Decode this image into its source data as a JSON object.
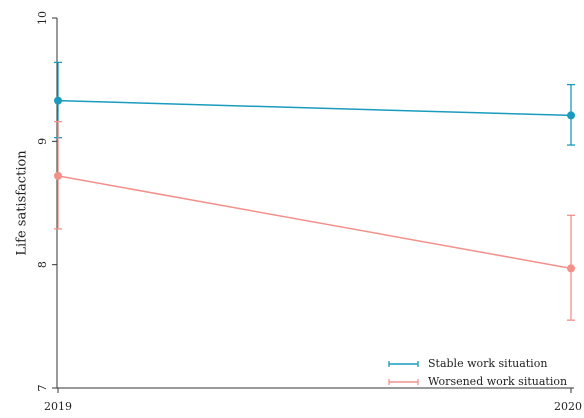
{
  "chart_data": {
    "type": "line",
    "x": [
      "2019",
      "2020"
    ],
    "ylabel": "Life satisfaction",
    "xlabel": "",
    "ylim": [
      7,
      10
    ],
    "yticks": [
      "7",
      "8",
      "9",
      "10"
    ],
    "grid": false,
    "legend_position": "bottom-right",
    "series": [
      {
        "name": "Stable work situation",
        "color": "#1a9bbd",
        "values": [
          9.33,
          9.21
        ],
        "ci_low": [
          9.03,
          8.97
        ],
        "ci_high": [
          9.64,
          9.46
        ]
      },
      {
        "name": "Worsened work situation",
        "color": "#f4908a",
        "values": [
          8.72,
          7.97
        ],
        "ci_low": [
          8.29,
          7.55
        ],
        "ci_high": [
          9.16,
          8.4
        ]
      }
    ]
  }
}
